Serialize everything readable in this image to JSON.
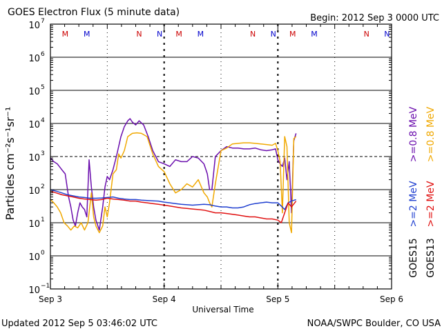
{
  "chart_data": {
    "type": "line",
    "title": "GOES Electron Flux (5 minute data)",
    "begin_label": "Begin: 2012 Sep 3 0000 UTC",
    "xlabel": "Universal Time",
    "ylabel": "Particles cm⁻²s⁻¹sr⁻¹",
    "y_scale": "log",
    "ylim_exp": [
      -1,
      7
    ],
    "y_ticks": [
      {
        "base": "10",
        "exp": "7",
        "e": 7
      },
      {
        "base": "10",
        "exp": "6",
        "e": 6
      },
      {
        "base": "10",
        "exp": "5",
        "e": 5
      },
      {
        "base": "10",
        "exp": "4",
        "e": 4
      },
      {
        "base": "10",
        "exp": "3",
        "e": 3
      },
      {
        "base": "10",
        "exp": "2",
        "e": 2
      },
      {
        "base": "10",
        "exp": "1",
        "e": 1
      },
      {
        "base": "10",
        "exp": "0",
        "e": 0
      },
      {
        "base": "10",
        "exp": "−1",
        "e": -1
      }
    ],
    "xlim_days": [
      0,
      3
    ],
    "x_ticks": [
      {
        "label": "Sep 3",
        "day": 0
      },
      {
        "label": "Sep 4",
        "day": 1
      },
      {
        "label": "Sep 5",
        "day": 2
      },
      {
        "label": "Sep 6",
        "day": 3
      }
    ],
    "threshold_lines_exp": [
      2,
      3
    ],
    "midnight_markers_day": [
      0,
      1,
      2
    ],
    "noon_markers_day": [
      0.5,
      1.5,
      2.5
    ],
    "mn_markers": [
      {
        "label": "M",
        "day": 0.13,
        "color": "#cc0000"
      },
      {
        "label": "M",
        "day": 0.32,
        "color": "#0000cc"
      },
      {
        "label": "N",
        "day": 0.78,
        "color": "#cc0000"
      },
      {
        "label": "N",
        "day": 0.96,
        "color": "#0000cc"
      },
      {
        "label": "M",
        "day": 1.13,
        "color": "#cc0000"
      },
      {
        "label": "M",
        "day": 1.32,
        "color": "#0000cc"
      },
      {
        "label": "N",
        "day": 1.78,
        "color": "#cc0000"
      },
      {
        "label": "N",
        "day": 1.96,
        "color": "#0000cc"
      },
      {
        "label": "M",
        "day": 2.13,
        "color": "#cc0000"
      },
      {
        "label": "M",
        "day": 2.32,
        "color": "#0000cc"
      },
      {
        "label": "N",
        "day": 2.78,
        "color": "#cc0000"
      },
      {
        "label": "N",
        "day": 2.96,
        "color": "#0000cc"
      }
    ],
    "legend": [
      {
        "text": ">=0.8 MeV",
        "color": "#6a0dad"
      },
      {
        "text": ">=0.8 MeV",
        "color": "#f0a800"
      },
      {
        "text": ">=2 MeV",
        "color": "#1f3fd0"
      },
      {
        "text": ">=2 MeV",
        "color": "#e01010"
      },
      {
        "text": "GOES15",
        "color": "#000000"
      },
      {
        "text": "GOES13",
        "color": "#000000"
      }
    ],
    "series": [
      {
        "name": "GOES15 >=0.8 MeV",
        "color": "#6a0dad",
        "x": [
          0.0,
          0.03,
          0.06,
          0.1,
          0.13,
          0.16,
          0.18,
          0.2,
          0.22,
          0.24,
          0.26,
          0.28,
          0.3,
          0.32,
          0.34,
          0.36,
          0.38,
          0.4,
          0.43,
          0.46,
          0.48,
          0.5,
          0.52,
          0.55,
          0.58,
          0.6,
          0.62,
          0.65,
          0.68,
          0.7,
          0.72,
          0.75,
          0.78,
          0.82,
          0.86,
          0.9,
          0.95,
          1.0,
          1.05,
          1.1,
          1.15,
          1.2,
          1.25,
          1.3,
          1.35,
          1.38,
          1.4,
          1.42,
          1.45,
          1.5,
          1.55,
          1.6,
          1.65,
          1.7,
          1.75,
          1.8,
          1.85,
          1.9,
          1.95,
          1.98,
          2.0,
          2.02,
          2.04,
          2.06,
          2.08,
          2.1,
          2.12,
          2.14,
          2.16
        ],
        "y": [
          900,
          700,
          600,
          400,
          300,
          60,
          30,
          12,
          8,
          20,
          40,
          30,
          25,
          15,
          800,
          120,
          30,
          12,
          6,
          30,
          120,
          250,
          200,
          400,
          1000,
          2000,
          4000,
          8000,
          12000,
          14000,
          11000,
          9000,
          12000,
          9000,
          4000,
          1500,
          700,
          600,
          500,
          800,
          700,
          700,
          1000,
          900,
          600,
          300,
          100,
          100,
          1000,
          1500,
          2000,
          1800,
          1800,
          1700,
          1700,
          1800,
          1600,
          1500,
          1600,
          1700,
          800,
          600,
          500,
          900,
          200,
          700,
          20,
          3000,
          5000
        ]
      },
      {
        "name": "GOES13 >=0.8 MeV",
        "color": "#f0a800",
        "x": [
          0.0,
          0.03,
          0.06,
          0.09,
          0.12,
          0.15,
          0.18,
          0.21,
          0.24,
          0.27,
          0.3,
          0.33,
          0.36,
          0.38,
          0.4,
          0.43,
          0.46,
          0.48,
          0.5,
          0.52,
          0.55,
          0.58,
          0.6,
          0.62,
          0.65,
          0.68,
          0.72,
          0.76,
          0.8,
          0.85,
          0.9,
          0.95,
          1.0,
          1.05,
          1.1,
          1.15,
          1.2,
          1.25,
          1.3,
          1.35,
          1.38,
          1.4,
          1.42,
          1.45,
          1.5,
          1.55,
          1.6,
          1.65,
          1.7,
          1.75,
          1.8,
          1.85,
          1.9,
          1.95,
          1.98,
          2.0,
          2.02,
          2.04,
          2.06,
          2.08,
          2.1,
          2.12,
          2.14,
          2.16
        ],
        "y": [
          50,
          40,
          30,
          20,
          10,
          8,
          6,
          8,
          7,
          10,
          6,
          10,
          80,
          15,
          8,
          5,
          8,
          30,
          15,
          40,
          300,
          400,
          1200,
          900,
          1500,
          4000,
          5000,
          5200,
          5000,
          4000,
          1200,
          500,
          350,
          150,
          80,
          100,
          150,
          120,
          200,
          80,
          60,
          40,
          30,
          150,
          1500,
          1800,
          2400,
          2500,
          2600,
          2600,
          2500,
          2400,
          2300,
          2200,
          2500,
          1500,
          700,
          20,
          4000,
          2000,
          10,
          5,
          3500,
          4000
        ]
      },
      {
        "name": "GOES15 >=2 MeV",
        "color": "#1f3fd0",
        "x": [
          0.0,
          0.05,
          0.1,
          0.15,
          0.2,
          0.25,
          0.3,
          0.35,
          0.4,
          0.45,
          0.5,
          0.55,
          0.6,
          0.65,
          0.7,
          0.75,
          0.8,
          0.85,
          0.9,
          0.95,
          1.0,
          1.05,
          1.1,
          1.15,
          1.2,
          1.25,
          1.3,
          1.35,
          1.4,
          1.45,
          1.5,
          1.55,
          1.6,
          1.65,
          1.7,
          1.75,
          1.8,
          1.85,
          1.9,
          1.95,
          2.0,
          2.03,
          2.06,
          2.09,
          2.12,
          2.16
        ],
        "y": [
          100,
          90,
          80,
          70,
          65,
          60,
          58,
          55,
          55,
          56,
          58,
          60,
          55,
          52,
          50,
          50,
          48,
          47,
          46,
          45,
          42,
          40,
          38,
          36,
          35,
          34,
          35,
          36,
          35,
          32,
          30,
          30,
          28,
          28,
          30,
          35,
          38,
          40,
          42,
          40,
          40,
          32,
          25,
          40,
          45,
          50
        ]
      },
      {
        "name": "GOES13 >=2 MeV",
        "color": "#e01010",
        "x": [
          0.0,
          0.05,
          0.1,
          0.15,
          0.2,
          0.25,
          0.3,
          0.35,
          0.4,
          0.45,
          0.5,
          0.55,
          0.6,
          0.65,
          0.7,
          0.75,
          0.8,
          0.85,
          0.9,
          0.95,
          1.0,
          1.05,
          1.1,
          1.15,
          1.2,
          1.25,
          1.3,
          1.35,
          1.4,
          1.45,
          1.5,
          1.55,
          1.6,
          1.65,
          1.7,
          1.75,
          1.8,
          1.85,
          1.9,
          1.95,
          2.0,
          2.03,
          2.06,
          2.09,
          2.12,
          2.16
        ],
        "y": [
          90,
          80,
          70,
          65,
          60,
          55,
          52,
          50,
          48,
          50,
          55,
          52,
          50,
          48,
          45,
          45,
          42,
          40,
          38,
          36,
          34,
          32,
          30,
          28,
          27,
          26,
          25,
          24,
          22,
          20,
          20,
          19,
          18,
          17,
          16,
          15,
          15,
          14,
          13,
          13,
          12,
          10,
          20,
          40,
          30,
          45
        ]
      }
    ],
    "footer_left": "Updated 2012 Sep  5 03:46:02 UTC",
    "footer_right": "NOAA/SWPC Boulder, CO USA"
  }
}
